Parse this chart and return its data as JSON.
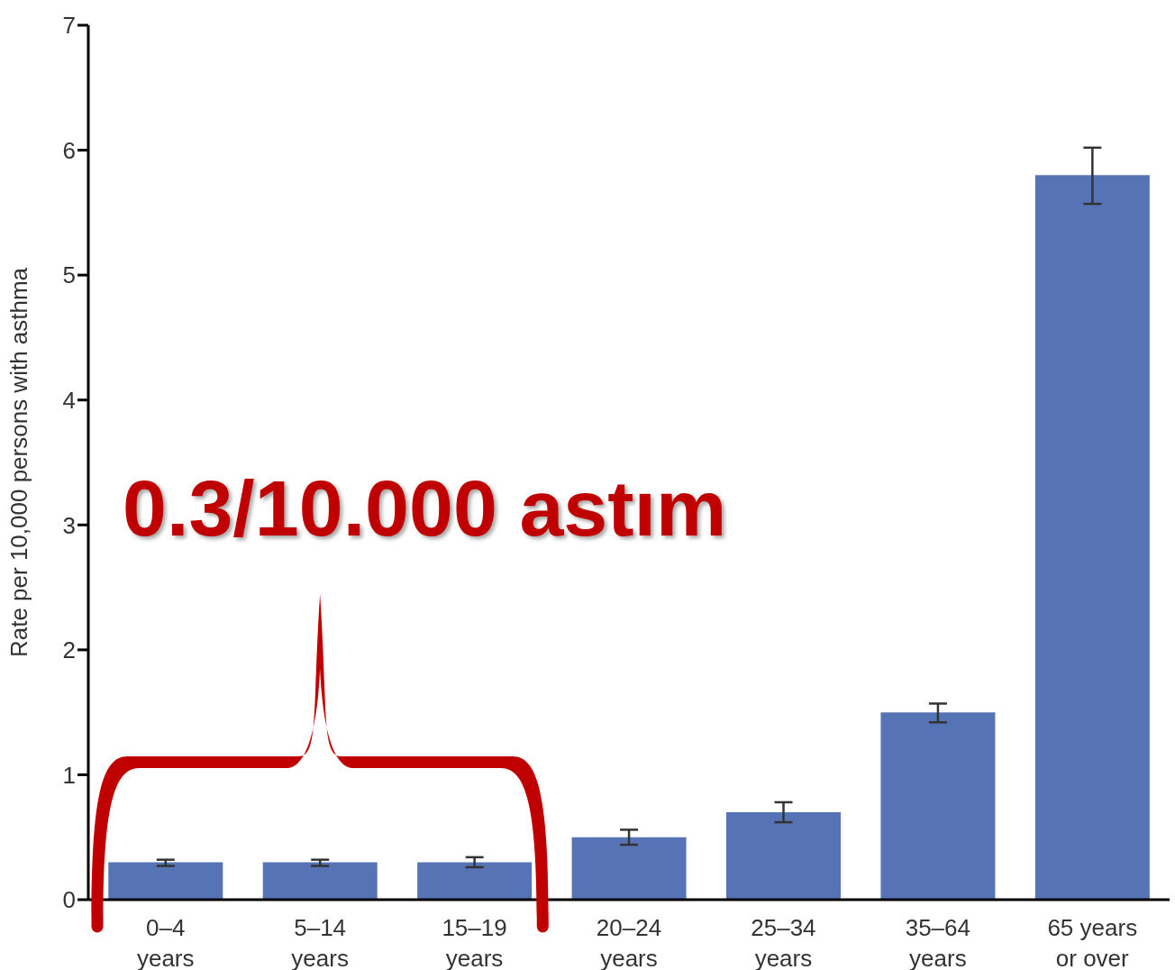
{
  "chart_data": {
    "type": "bar",
    "ylabel": "Rate per 10,000 persons with asthma",
    "categories": [
      "0–4 years",
      "5–14 years",
      "15–19 years",
      "20–24 years",
      "25–34 years",
      "35–64 years",
      "65 years or over"
    ],
    "values": [
      0.3,
      0.3,
      0.3,
      0.5,
      0.7,
      1.5,
      5.8
    ],
    "errors": [
      [
        0.27,
        0.32
      ],
      [
        0.27,
        0.32
      ],
      [
        0.26,
        0.34
      ],
      [
        0.44,
        0.56
      ],
      [
        0.62,
        0.78
      ],
      [
        1.42,
        1.57
      ],
      [
        5.57,
        6.02
      ]
    ],
    "color": "#5674b5",
    "ylim": [
      0,
      7
    ],
    "yticks": [
      0,
      1,
      2,
      3,
      4,
      5,
      6,
      7
    ],
    "annotations": [
      "0.3/10.000 astım"
    ]
  }
}
